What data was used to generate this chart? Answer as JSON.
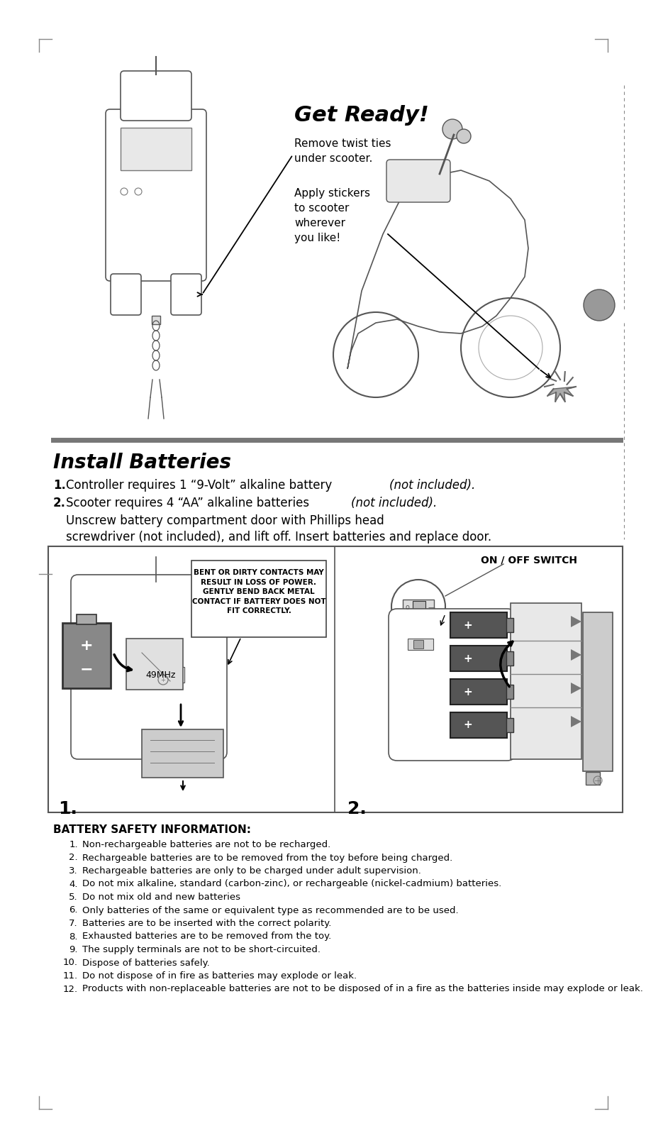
{
  "bg_color": "#ffffff",
  "page_width": 9.12,
  "page_height": 16.18,
  "title_get_ready": "Get Ready!",
  "get_ready_sub1": "Remove twist ties\nunder scooter.",
  "get_ready_sub2": "Apply stickers\nto scooter\nwherever\nyou like!",
  "install_batteries_title": "Install Batteries",
  "install_line1_bold": "1.",
  "install_line1_main": " Controller requires 1 “9-Volt” alkaline battery ",
  "install_line1_italic": "(not included).",
  "install_line2_bold": "2.",
  "install_line2_main": " Scooter requires 4 “AA” alkaline batteries ",
  "install_line2_italic": "(not included).",
  "install_line3a": "   Unscrew battery compartment door with Phillips head",
  "install_line3b": "   screwdriver (not included), and lift off. Insert batteries and replace door.",
  "callout_text": "BENT OR DIRTY CONTACTS MAY\nRESULT IN LOSS OF POWER.\nGENTLY BEND BACK METAL\nCONTACT IF BATTERY DOES NOT\nFIT CORRECTLY.",
  "on_off_text": "ON / OFF SWITCH",
  "freq_text": "49MHz",
  "num1": "1.",
  "num2": "2.",
  "battery_safety_title": "BATTERY SAFETY INFORMATION:",
  "safety_items": [
    "Non-rechargeable batteries are not to be recharged.",
    "Rechargeable batteries are to be removed from the toy before being charged.",
    "Rechargeable batteries are only to be charged under adult supervision.",
    "Do not mix alkaline, standard (carbon-zinc), or rechargeable (nickel-cadmium) batteries.",
    "Do not mix old and new batteries",
    "Only batteries of the same or equivalent type as recommended are to be used.",
    "Batteries are to be inserted with the correct polarity.",
    "Exhausted batteries are to be removed from the toy.",
    "The supply terminals are not to be short-circuited.",
    "Dispose of batteries safely.",
    "Do not dispose of in fire as batteries may explode or leak.",
    "Products with non-replaceable batteries are not to be disposed of in a fire as the batteries inside may explode or leak."
  ],
  "text_color": "#000000",
  "gray_line": "#808080",
  "outline_color": "#555555",
  "light_gray": "#cccccc",
  "mid_gray": "#999999",
  "dark_gray": "#666666",
  "batt_dark": "#444444",
  "batt_light": "#aaaaaa"
}
